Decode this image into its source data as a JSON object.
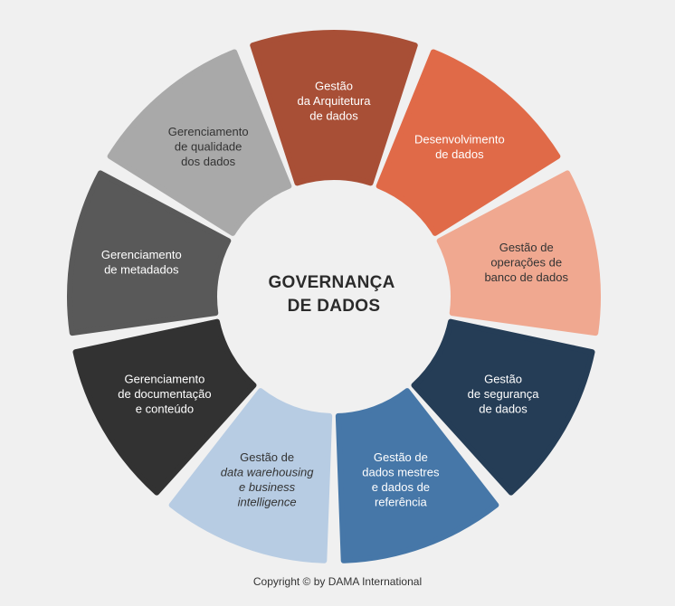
{
  "center": {
    "lines": [
      "GOVERNANÇA",
      "DE DADOS"
    ]
  },
  "segments": [
    {
      "id": "arquitetura",
      "color": "#a84f36",
      "text_color": "#ffffff",
      "lines": [
        {
          "t": "Gestão"
        },
        {
          "t": "da Arquitetura"
        },
        {
          "t": "de dados"
        }
      ]
    },
    {
      "id": "desenvolvimento",
      "color": "#e06a48",
      "text_color": "#ffffff",
      "lines": [
        {
          "t": "Desenvolvimento"
        },
        {
          "t": "de dados"
        }
      ]
    },
    {
      "id": "operacoes",
      "color": "#f0a890",
      "text_color": "#333333",
      "lines": [
        {
          "t": "Gestão de"
        },
        {
          "t": "operações de"
        },
        {
          "t": "banco de dados"
        }
      ]
    },
    {
      "id": "seguranca",
      "color": "#253d56",
      "text_color": "#ffffff",
      "lines": [
        {
          "t": "Gestão"
        },
        {
          "t": "de segurança"
        },
        {
          "t": "de dados"
        }
      ]
    },
    {
      "id": "mestres",
      "color": "#4677a8",
      "text_color": "#ffffff",
      "lines": [
        {
          "t": "Gestão de"
        },
        {
          "t": "dados mestres"
        },
        {
          "t": "e dados de"
        },
        {
          "t": "referência"
        }
      ]
    },
    {
      "id": "warehousing",
      "color": "#b7cce3",
      "text_color": "#333333",
      "lines": [
        {
          "t": "Gestão de"
        },
        {
          "t": "data warehousing",
          "italic": true
        },
        {
          "t": "e business",
          "italic": true
        },
        {
          "t": "intelligence",
          "italic": true
        }
      ]
    },
    {
      "id": "documentacao",
      "color": "#323232",
      "text_color": "#ffffff",
      "lines": [
        {
          "t": "Gerenciamento"
        },
        {
          "t": "de documentação"
        },
        {
          "t": "e conteúdo"
        }
      ]
    },
    {
      "id": "metadados",
      "color": "#595959",
      "text_color": "#ffffff",
      "lines": [
        {
          "t": "Gerenciamento"
        },
        {
          "t": "de metadados"
        }
      ]
    },
    {
      "id": "qualidade",
      "color": "#a9a9a9",
      "text_color": "#333333",
      "lines": [
        {
          "t": "Gerenciamento"
        },
        {
          "t": "de qualidade"
        },
        {
          "t": "dos dados"
        }
      ]
    }
  ],
  "footer": {
    "copyright": "Copyright © by DAMA International"
  }
}
